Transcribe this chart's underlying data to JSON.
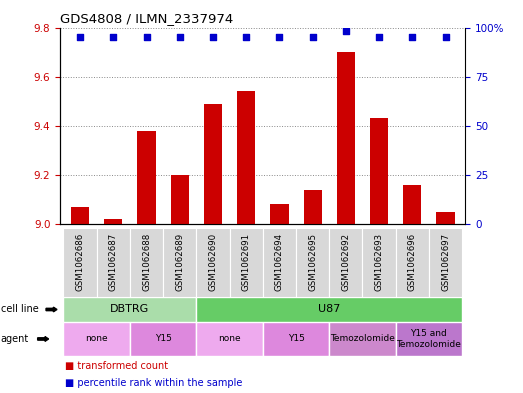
{
  "title": "GDS4808 / ILMN_2337974",
  "samples": [
    "GSM1062686",
    "GSM1062687",
    "GSM1062688",
    "GSM1062689",
    "GSM1062690",
    "GSM1062691",
    "GSM1062694",
    "GSM1062695",
    "GSM1062692",
    "GSM1062693",
    "GSM1062696",
    "GSM1062697"
  ],
  "transformed_counts": [
    9.07,
    9.02,
    9.38,
    9.2,
    9.49,
    9.54,
    9.08,
    9.14,
    9.7,
    9.43,
    9.16,
    9.05
  ],
  "percentile_ranks": [
    95,
    95,
    95,
    95,
    95,
    95,
    95,
    95,
    98,
    95,
    95,
    95
  ],
  "ylim_left": [
    9.0,
    9.8
  ],
  "ylim_right": [
    0,
    100
  ],
  "yticks_left": [
    9.0,
    9.2,
    9.4,
    9.6,
    9.8
  ],
  "yticks_right": [
    0,
    25,
    50,
    75,
    100
  ],
  "bar_color": "#cc0000",
  "dot_color": "#0000cc",
  "cell_line_groups": [
    {
      "label": "DBTRG",
      "start": 0,
      "end": 3,
      "color": "#aaddaa"
    },
    {
      "label": "U87",
      "start": 4,
      "end": 11,
      "color": "#66cc66"
    }
  ],
  "agent_groups": [
    {
      "label": "none",
      "start": 0,
      "end": 1,
      "color": "#eeaaee"
    },
    {
      "label": "Y15",
      "start": 2,
      "end": 3,
      "color": "#dd88dd"
    },
    {
      "label": "none",
      "start": 4,
      "end": 5,
      "color": "#eeaaee"
    },
    {
      "label": "Y15",
      "start": 6,
      "end": 7,
      "color": "#dd88dd"
    },
    {
      "label": "Temozolomide",
      "start": 8,
      "end": 9,
      "color": "#cc88cc"
    },
    {
      "label": "Y15 and\nTemozolomide",
      "start": 10,
      "end": 11,
      "color": "#bb77cc"
    }
  ],
  "grid_color": "#888888",
  "bg_color": "#ffffff",
  "left_label_color": "#cc0000",
  "right_label_color": "#0000cc"
}
